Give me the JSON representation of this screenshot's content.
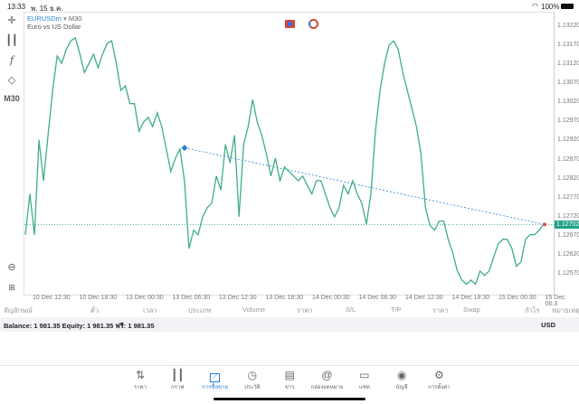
{
  "status_bar": {
    "time": "13:33",
    "date": "พ. 15 ธ.ค.",
    "battery": "100%"
  },
  "chart": {
    "symbol": "EURUSDm",
    "timeframe": "M30",
    "description": "Euro vs US Dollar",
    "current_price": "1.12702",
    "colors": {
      "line": "#3fae86",
      "price_tag": "#21a38a",
      "trend": "#2b7fd8",
      "marker": "#e04b3c"
    },
    "y_ticks": [
      "1.13220",
      "1.13170",
      "1.13120",
      "1.13070",
      "1.13020",
      "1.12970",
      "1.12920",
      "1.12870",
      "1.12820",
      "1.12770",
      "1.12720",
      "1.12670",
      "1.12620",
      "1.12570"
    ],
    "x_ticks": [
      "10 Dec 12:30",
      "10 Dec 18:30",
      "13 Dec 00:30",
      "13 Dec 06:30",
      "13 Dec 12:30",
      "13 Dec 18:30",
      "14 Dec 00:30",
      "14 Dec 06:30",
      "14 Dec 12:30",
      "14 Dec 18:30",
      "15 Dec 00:30",
      "15 Dec 06:3"
    ],
    "left_toolbar": {
      "timeframe_label": "M30"
    },
    "series": [
      1.12675,
      1.12782,
      1.12675,
      1.12924,
      1.12817,
      1.12936,
      1.13054,
      1.13144,
      1.13125,
      1.13161,
      1.13184,
      1.13192,
      1.13149,
      1.13101,
      1.13125,
      1.13149,
      1.13113,
      1.13149,
      1.13177,
      1.13184,
      1.13125,
      1.13054,
      1.13066,
      1.13019,
      1.13019,
      1.12947,
      1.12971,
      1.12983,
      1.12959,
      1.12995,
      1.12959,
      1.129,
      1.12841,
      1.12876,
      1.129,
      1.12817,
      1.12639,
      1.12687,
      1.12675,
      1.12722,
      1.12746,
      1.12758,
      1.12829,
      1.12793,
      1.12912,
      1.12864,
      1.12936,
      1.12722,
      1.12912,
      1.12959,
      1.1303,
      1.12971,
      1.12936,
      1.12888,
      1.12829,
      1.12876,
      1.12817,
      1.12853,
      1.12841,
      1.12829,
      1.12817,
      1.12829,
      1.12805,
      1.12782,
      1.12817,
      1.12817,
      1.12782,
      1.12746,
      1.12722,
      1.12746,
      1.12805,
      1.12782,
      1.12817,
      1.12782,
      1.12758,
      1.12703,
      1.12782,
      1.12947,
      1.13054,
      1.13125,
      1.13173,
      1.13184,
      1.13161,
      1.13101,
      1.13054,
      1.13007,
      1.12959,
      1.12888,
      1.12746,
      1.12699,
      1.12687,
      1.12711,
      1.12711,
      1.12663,
      1.12627,
      1.1258,
      1.12556,
      1.12545,
      1.12556,
      1.12545,
      1.1258,
      1.12568,
      1.1258,
      1.12616,
      1.12651,
      1.12663,
      1.12663,
      1.12639,
      1.12592,
      1.12604,
      1.12663,
      1.12675,
      1.12675,
      1.12687,
      1.12703
    ],
    "trendline": {
      "start": 1.12903,
      "end": 1.12702
    }
  },
  "table_headers": [
    "สัญลักษณ์",
    "ตั๋ว",
    "เวลา",
    "ประเภท",
    "Volume",
    "ราคา",
    "S/L",
    "T/P",
    "ราคา",
    "Swap",
    "กำไร",
    "หมายเหตุ"
  ],
  "balance": {
    "text": "Balance: 1 981.35 Equity: 1 981.35 ฟรี: 1 981.35",
    "currency": "USD"
  },
  "nav": [
    {
      "label": "ราคา",
      "icon": "quotes-icon"
    },
    {
      "label": "กราฟ",
      "icon": "chart-icon"
    },
    {
      "label": "การซื้อขาย",
      "icon": "trade-icon",
      "active": true
    },
    {
      "label": "ประวัติ",
      "icon": "history-icon"
    },
    {
      "label": "ข่าว",
      "icon": "news-icon"
    },
    {
      "label": "กล่องจดหมาย",
      "icon": "mailbox-icon"
    },
    {
      "label": "แชท",
      "icon": "chat-icon"
    },
    {
      "label": "บัญชี",
      "icon": "account-icon"
    },
    {
      "label": "การตั้งค่า",
      "icon": "settings-icon"
    }
  ]
}
